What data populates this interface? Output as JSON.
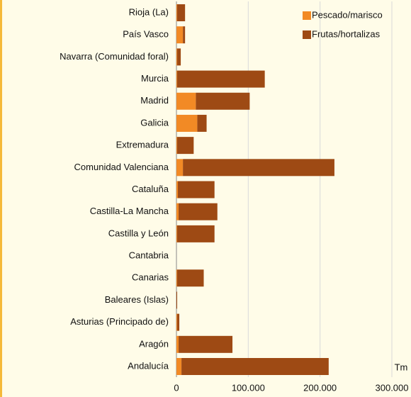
{
  "chart_data": {
    "type": "stacked-barh",
    "categories": [
      "Rioja (La)",
      "País Vasco",
      "Navarra (Comunidad foral)",
      "Murcia",
      "Madrid",
      "Galicia",
      "Extremadura",
      "Comunidad Valenciana",
      "Cataluña",
      "Castilla-La Mancha",
      "Castilla y León",
      "Cantabria",
      "Canarias",
      "Baleares (Islas)",
      "Asturias (Principado de)",
      "Aragón",
      "Andalucía"
    ],
    "series": [
      {
        "name": "Pescado/marisco",
        "color": "#f28a25",
        "values": [
          1000,
          9000,
          1000,
          1000,
          27000,
          29000,
          1000,
          9000,
          2000,
          3000,
          1000,
          0,
          1000,
          0,
          1000,
          3000,
          7000
        ]
      },
      {
        "name": "Frutas/hortalizas",
        "color": "#9e4a14",
        "values": [
          11000,
          3000,
          5000,
          122000,
          75000,
          13000,
          23000,
          211000,
          51000,
          54000,
          52000,
          0,
          37000,
          1000,
          3000,
          75000,
          205000
        ]
      }
    ],
    "xlim": [
      0,
      300000
    ],
    "xticks": [
      {
        "value": 0,
        "label": "0"
      },
      {
        "value": 100000,
        "label": "100.000"
      },
      {
        "value": 200000,
        "label": "200.000"
      },
      {
        "value": 300000,
        "label": "300.000"
      }
    ],
    "x_unit": "Tm",
    "grid": true,
    "legend": "top-right"
  }
}
